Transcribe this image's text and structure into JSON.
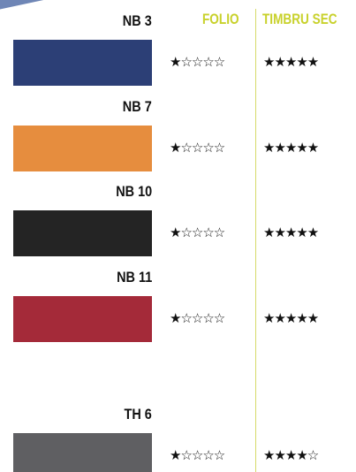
{
  "header": {
    "columns": [
      "FOLIO",
      "TIMBRU SEC"
    ]
  },
  "rows": [
    {
      "label": "NB 3",
      "color": "#2c3f76",
      "folio": "★☆☆☆☆",
      "timbru": "★★★★★"
    },
    {
      "label": "NB 7",
      "color": "#e68d3e",
      "folio": "★☆☆☆☆",
      "timbru": "★★★★★"
    },
    {
      "label": "NB 10",
      "color": "#242424",
      "folio": "★☆☆☆☆",
      "timbru": "★★★★★"
    },
    {
      "label": "NB 11",
      "color": "#a42a39",
      "folio": "★☆☆☆☆",
      "timbru": "★★★★★"
    },
    {
      "label": "TH 6",
      "color": "#5f5f62",
      "folio": "★☆☆☆☆",
      "timbru": "★★★★☆"
    }
  ]
}
